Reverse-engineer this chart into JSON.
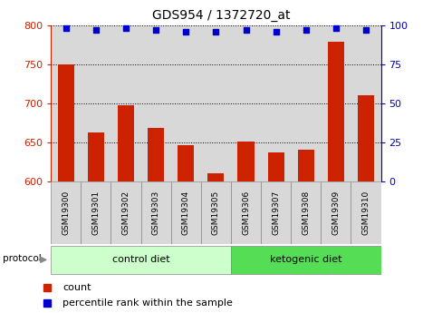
{
  "title": "GDS954 / 1372720_at",
  "samples": [
    "GSM19300",
    "GSM19301",
    "GSM19302",
    "GSM19303",
    "GSM19304",
    "GSM19305",
    "GSM19306",
    "GSM19307",
    "GSM19308",
    "GSM19309",
    "GSM19310"
  ],
  "count_values": [
    750,
    663,
    697,
    668,
    647,
    611,
    651,
    637,
    641,
    779,
    710
  ],
  "percentile_values": [
    98,
    97,
    98,
    97,
    96,
    96,
    97,
    96,
    97,
    98,
    97
  ],
  "groups": [
    {
      "label": "control diet",
      "start": 0,
      "end": 5,
      "color": "#ccffcc"
    },
    {
      "label": "ketogenic diet",
      "start": 6,
      "end": 10,
      "color": "#55dd55"
    }
  ],
  "ylim_left": [
    600,
    800
  ],
  "ylim_right": [
    0,
    100
  ],
  "yticks_left": [
    600,
    650,
    700,
    750,
    800
  ],
  "yticks_right": [
    0,
    25,
    50,
    75,
    100
  ],
  "bar_color": "#cc2200",
  "dot_color": "#0000cc",
  "bar_width": 0.55,
  "legend_count_label": "count",
  "legend_percentile_label": "percentile rank within the sample",
  "protocol_label": "protocol",
  "col_bg_color": "#d8d8d8",
  "plot_bg_color": "#ffffff"
}
